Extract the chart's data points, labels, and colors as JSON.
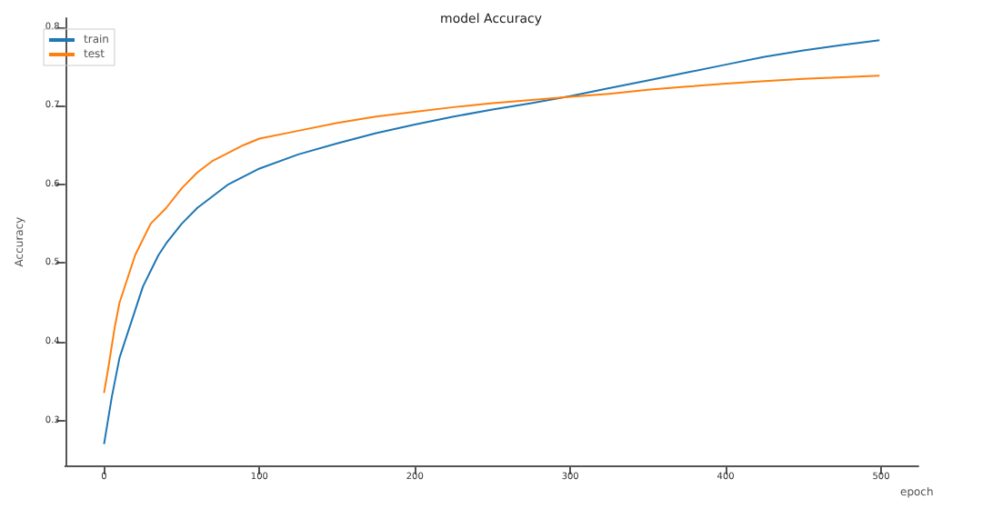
{
  "chart_data": {
    "type": "line",
    "title": "model Accuracy",
    "xlabel": "epoch",
    "ylabel": "Accuracy",
    "legend": "top left",
    "grid": false,
    "marker": "none",
    "line_style": "solid",
    "xlim": [
      -25,
      524
    ],
    "xticks": [
      0,
      100,
      200,
      300,
      400,
      500
    ],
    "ylim": [
      0.243,
      0.811
    ],
    "yticks": [
      0.3,
      0.4,
      0.5,
      0.6,
      0.7,
      0.8
    ],
    "series": [
      {
        "name": "train",
        "color": "#1f77b4",
        "x": [
          0,
          5,
          10,
          15,
          20,
          25,
          30,
          35,
          40,
          50,
          60,
          70,
          80,
          100,
          125,
          150,
          175,
          200,
          225,
          250,
          275,
          300,
          325,
          350,
          375,
          400,
          425,
          450,
          475,
          499
        ],
        "values": [
          0.27,
          0.33,
          0.38,
          0.41,
          0.44,
          0.47,
          0.49,
          0.51,
          0.525,
          0.55,
          0.57,
          0.585,
          0.6,
          0.62,
          0.638,
          0.652,
          0.665,
          0.676,
          0.686,
          0.695,
          0.703,
          0.712,
          0.722,
          0.732,
          0.742,
          0.752,
          0.762,
          0.77,
          0.777,
          0.783
        ]
      },
      {
        "name": "test",
        "color": "#ff7f0e",
        "x": [
          0,
          3,
          7,
          10,
          15,
          20,
          25,
          30,
          40,
          50,
          60,
          70,
          80,
          90,
          100,
          125,
          150,
          175,
          200,
          225,
          250,
          275,
          300,
          325,
          350,
          375,
          400,
          425,
          450,
          475,
          499
        ],
        "values": [
          0.335,
          0.37,
          0.42,
          0.45,
          0.48,
          0.51,
          0.53,
          0.55,
          0.57,
          0.595,
          0.615,
          0.63,
          0.64,
          0.65,
          0.658,
          0.668,
          0.678,
          0.686,
          0.692,
          0.698,
          0.703,
          0.707,
          0.711,
          0.715,
          0.72,
          0.724,
          0.728,
          0.731,
          0.734,
          0.736,
          0.738
        ]
      }
    ]
  }
}
